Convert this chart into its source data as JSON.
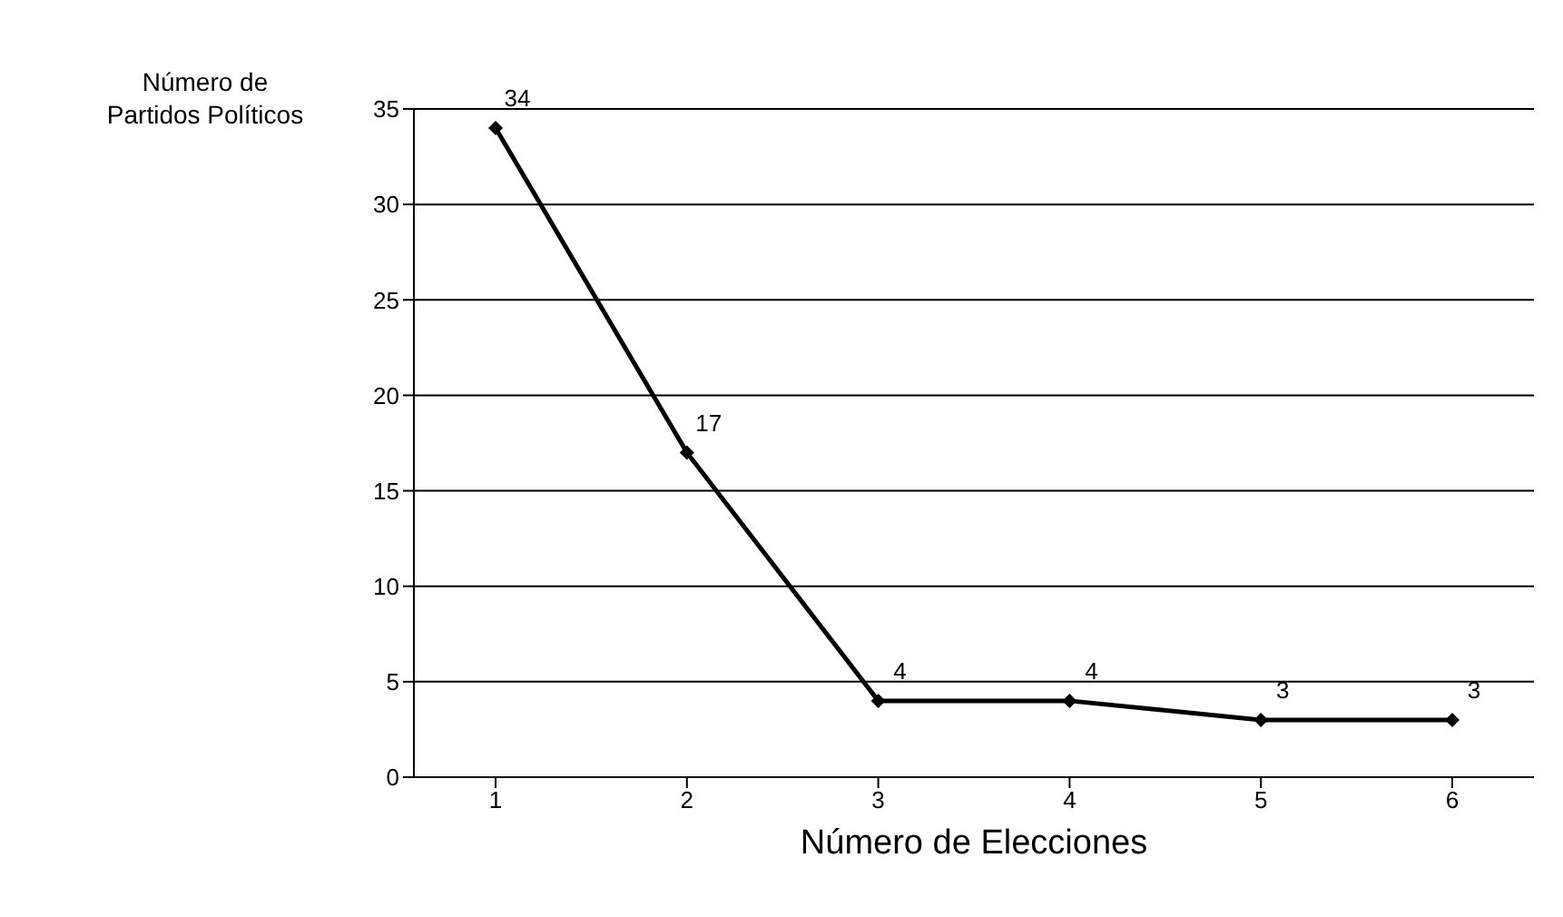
{
  "chart_data": {
    "type": "line",
    "xlabel": "Número de Elecciones",
    "ylabel": "Número de Partidos Políticos",
    "categories": [
      "1",
      "2",
      "3",
      "4",
      "5",
      "6"
    ],
    "series": [
      {
        "color": "#000000",
        "values": [
          34,
          17,
          4,
          4,
          3,
          3
        ]
      }
    ],
    "ylim": [
      0,
      35
    ],
    "yticks": [
      0,
      5,
      10,
      15,
      20,
      25,
      30,
      35
    ],
    "grid": "y",
    "marker": "diamond",
    "line_style": "solid",
    "data_labels": true,
    "legend": false
  }
}
